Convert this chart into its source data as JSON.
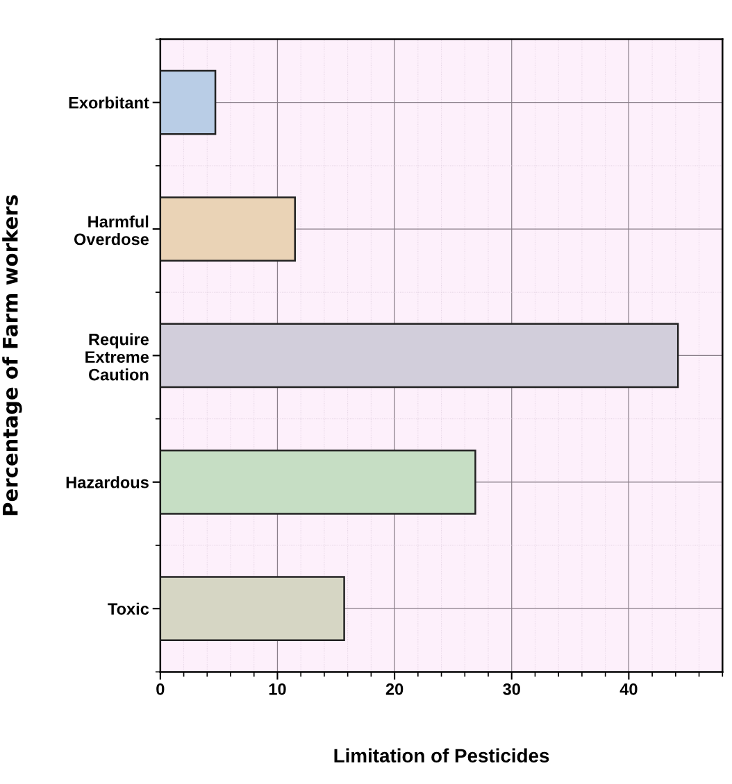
{
  "chart_data": {
    "type": "bar",
    "orientation": "horizontal",
    "xlabel": "Limitation of Pesticides",
    "ylabel": "Percentage of Farm workers",
    "categories": [
      "Exorbitant",
      "Harmful\nOverdose",
      "Require\nExtreme\nCaution",
      "Hazardous",
      "Toxic"
    ],
    "values": [
      4.7,
      11.5,
      44.2,
      26.9,
      15.7
    ],
    "colors": [
      "#b9cde6",
      "#ead3b6",
      "#d2cedb",
      "#c6dec4",
      "#d6d6c4"
    ],
    "xlim": [
      0,
      48
    ],
    "xticks": [
      0,
      10,
      20,
      30,
      40
    ],
    "grid": true,
    "legend": false
  }
}
